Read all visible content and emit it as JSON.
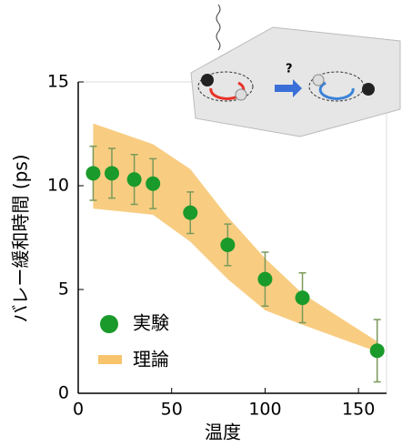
{
  "chart_data": {
    "type": "scatter",
    "x_label": "温度",
    "y_label": "バレー緩和時間 (ps)",
    "annotation": "?",
    "xlim": [
      0,
      165
    ],
    "ylim": [
      0,
      15
    ],
    "xticks": [
      0,
      50,
      100,
      150
    ],
    "yticks": [
      0,
      5,
      10,
      15
    ],
    "grid": false,
    "legend": "lower left",
    "band": {
      "name": "理論",
      "color": "#f7c46c",
      "x": [
        8,
        40,
        60,
        80,
        100,
        120,
        160
      ],
      "upper": [
        13.0,
        12.0,
        10.8,
        8.5,
        6.5,
        4.8,
        2.5
      ],
      "lower": [
        8.9,
        8.6,
        7.3,
        5.5,
        4.0,
        3.3,
        2.0
      ]
    },
    "series": [
      {
        "name": "実験",
        "color": "#1a9a2a",
        "x": [
          8,
          18,
          30,
          40,
          60,
          80,
          100,
          120,
          160
        ],
        "values": [
          10.6,
          10.6,
          10.3,
          10.1,
          8.7,
          7.15,
          5.5,
          4.6,
          2.05
        ],
        "errors": [
          1.3,
          1.2,
          1.2,
          1.2,
          1.0,
          1.0,
          1.3,
          1.2,
          1.5
        ]
      }
    ]
  }
}
